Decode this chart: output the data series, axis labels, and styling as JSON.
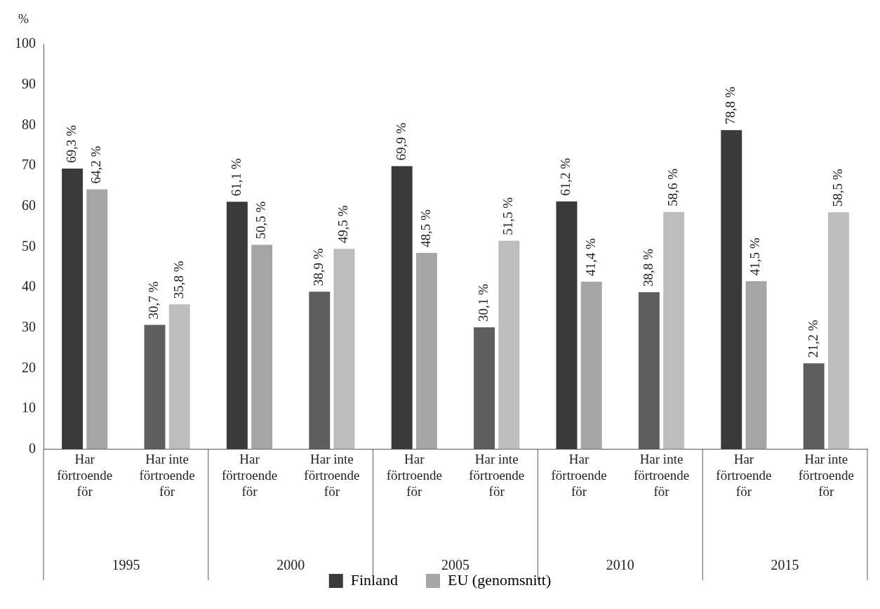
{
  "chart_data": {
    "type": "bar",
    "ylabel": "%",
    "categories": [
      "Har förtroende för",
      "Har inte förtroende för",
      "Har förtroende för",
      "Har inte förtroende för",
      "Har förtroende för",
      "Har inte förtroende för",
      "Har förtroende för",
      "Har inte förtroende för",
      "Har förtroende för",
      "Har inte förtroende för"
    ],
    "annotations": [
      "1995",
      "2000",
      "2005",
      "2010",
      "2015"
    ],
    "series": [
      {
        "name": "Finland",
        "color": "#3a3a3a",
        "colors": [
          "#3a3a3a",
          "#5e5e5e",
          "#3a3a3a",
          "#5e5e5e",
          "#3a3a3a",
          "#5e5e5e",
          "#3a3a3a",
          "#5e5e5e",
          "#3a3a3a",
          "#5e5e5e"
        ],
        "values": [
          69.3,
          30.7,
          61.1,
          38.9,
          69.9,
          30.1,
          61.2,
          38.8,
          78.8,
          21.2
        ],
        "value_labels": [
          "69,3 %",
          "30,7 %",
          "61,1 %",
          "38,9 %",
          "69,9 %",
          "30,1 %",
          "61,2 %",
          "38,8 %",
          "78,8 %",
          "21,2 %"
        ]
      },
      {
        "name": "EU (genomsnitt)",
        "color": "#a6a6a6",
        "colors": [
          "#a6a6a6",
          "#bdbdbd",
          "#a6a6a6",
          "#bdbdbd",
          "#a6a6a6",
          "#bdbdbd",
          "#a6a6a6",
          "#bdbdbd",
          "#a6a6a6",
          "#bdbdbd"
        ],
        "values": [
          64.2,
          35.8,
          50.5,
          49.5,
          48.5,
          51.5,
          41.4,
          58.6,
          41.5,
          58.5
        ],
        "value_labels": [
          "64,2 %",
          "35,8 %",
          "50,5 %",
          "49,5 %",
          "48,5 %",
          "51,5 %",
          "41,4 %",
          "58,6 %",
          "41,5 %",
          "58,5 %"
        ]
      }
    ],
    "ylim": [
      0,
      100
    ],
    "yticks": [
      0,
      10,
      20,
      30,
      40,
      50,
      60,
      70,
      80,
      90,
      100
    ],
    "grid": false,
    "legend": "bottom"
  }
}
